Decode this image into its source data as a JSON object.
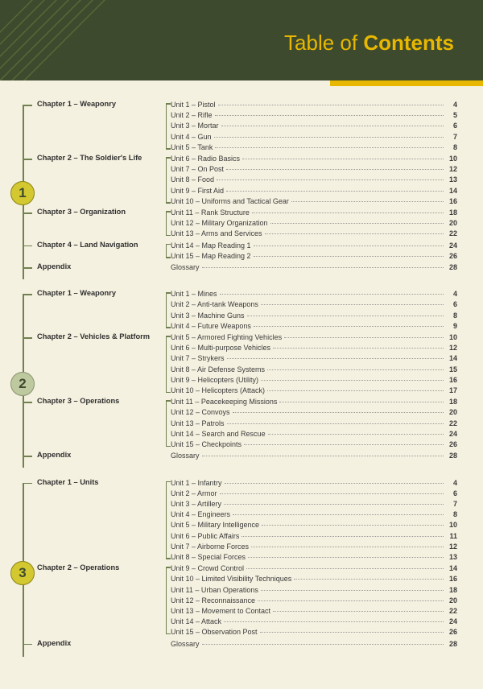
{
  "header": {
    "light": "Table of ",
    "bold": "Contents"
  },
  "sections": [
    {
      "num": "1",
      "numClass": "sn1",
      "numTop": 101,
      "vlineHeight": 217,
      "chapters": [
        {
          "title": "Chapter 1 – Weaponry",
          "units": [
            {
              "name": "Unit 1 – Pistol",
              "page": "4"
            },
            {
              "name": "Unit 2 – Rifle",
              "page": "5"
            },
            {
              "name": "Unit 3 – Mortar",
              "page": "6"
            },
            {
              "name": "Unit 4 – Gun",
              "page": "7"
            },
            {
              "name": "Unit 5 – Tank",
              "page": "8"
            }
          ]
        },
        {
          "title": "Chapter 2 – The Soldier's Life",
          "units": [
            {
              "name": "Unit 6 – Radio Basics",
              "page": "10"
            },
            {
              "name": "Unit 7 – On Post",
              "page": "12"
            },
            {
              "name": "Unit 8 – Food",
              "page": "13"
            },
            {
              "name": "Unit 9 – First Aid",
              "page": "14"
            },
            {
              "name": "Unit 10 – Uniforms and Tactical Gear",
              "page": "16"
            }
          ]
        },
        {
          "title": "Chapter 3 – Organization",
          "units": [
            {
              "name": "Unit 11 – Rank Structure",
              "page": "18"
            },
            {
              "name": "Unit 12 – Military Organization",
              "page": "20"
            },
            {
              "name": "Unit 13 – Arms and Services",
              "page": "22"
            }
          ]
        },
        {
          "title": "Chapter 4 – Land Navigation",
          "units": [
            {
              "name": "Unit 14 – Map Reading 1",
              "page": "24"
            },
            {
              "name": "Unit 15 – Map Reading 2",
              "page": "26"
            }
          ]
        },
        {
          "title": "Appendix",
          "units": [
            {
              "name": "Glossary",
              "page": "28"
            }
          ]
        }
      ]
    },
    {
      "num": "2",
      "numClass": "sn2",
      "numTop": 103,
      "vlineHeight": 216,
      "chapters": [
        {
          "title": "Chapter 1 – Weaponry",
          "units": [
            {
              "name": "Unit 1 – Mines",
              "page": "4"
            },
            {
              "name": "Unit 2 – Anti-tank Weapons",
              "page": "6"
            },
            {
              "name": "Unit 3 – Machine Guns",
              "page": "8"
            },
            {
              "name": "Unit 4 – Future Weapons",
              "page": "9"
            }
          ]
        },
        {
          "title": "Chapter 2 – Vehicles & Platform",
          "units": [
            {
              "name": "Unit 5 – Armored Fighting Vehicles",
              "page": "10"
            },
            {
              "name": "Unit 6 – Multi-purpose Vehicles",
              "page": "12"
            },
            {
              "name": "Unit 7 – Strykers",
              "page": "14"
            },
            {
              "name": "Unit 8 – Air Defense Systems",
              "page": "15"
            },
            {
              "name": "Unit 9 – Helicopters (Utility)",
              "page": "16"
            },
            {
              "name": "Unit 10 – Helicopters (Attack)",
              "page": "17"
            }
          ]
        },
        {
          "title": "Chapter 3 – Operations",
          "units": [
            {
              "name": "Unit 11 – Peacekeeping Missions",
              "page": "18"
            },
            {
              "name": "Unit 12 – Convoys",
              "page": "20"
            },
            {
              "name": "Unit 13 – Patrols",
              "page": "22"
            },
            {
              "name": "Unit 14 – Search and Rescue",
              "page": "24"
            },
            {
              "name": "Unit 15 – Checkpoints",
              "page": "26"
            }
          ]
        },
        {
          "title": "Appendix",
          "units": [
            {
              "name": "Glossary",
              "page": "28"
            }
          ]
        }
      ]
    },
    {
      "num": "3",
      "numClass": "sn3",
      "numTop": 103,
      "vlineHeight": 216,
      "chapters": [
        {
          "title": "Chapter 1 – Units",
          "units": [
            {
              "name": "Unit 1 – Infantry",
              "page": "4"
            },
            {
              "name": "Unit 2 – Armor",
              "page": "6"
            },
            {
              "name": "Unit 3 – Artillery",
              "page": "7"
            },
            {
              "name": "Unit 4 – Engineers",
              "page": "8"
            },
            {
              "name": "Unit 5 – Military Intelligence",
              "page": "10"
            },
            {
              "name": "Unit 6 – Public Affairs",
              "page": "11"
            },
            {
              "name": "Unit 7 – Airborne Forces",
              "page": "12"
            },
            {
              "name": "Unit 8 – Special Forces",
              "page": "13"
            }
          ]
        },
        {
          "title": "Chapter 2 – Operations",
          "units": [
            {
              "name": "Unit 9 – Crowd Control",
              "page": "14"
            },
            {
              "name": "Unit 10 – Limited Visibility Techniques",
              "page": "16"
            },
            {
              "name": "Unit 11 – Urban Operations",
              "page": "18"
            },
            {
              "name": "Unit 12 – Reconnaissance",
              "page": "20"
            },
            {
              "name": "Unit 13 – Movement to Contact",
              "page": "22"
            },
            {
              "name": "Unit 14 – Attack",
              "page": "24"
            },
            {
              "name": "Unit 15 – Observation Post",
              "page": "26"
            }
          ]
        },
        {
          "title": "Appendix",
          "units": [
            {
              "name": "Glossary",
              "page": "28"
            }
          ]
        }
      ]
    }
  ]
}
